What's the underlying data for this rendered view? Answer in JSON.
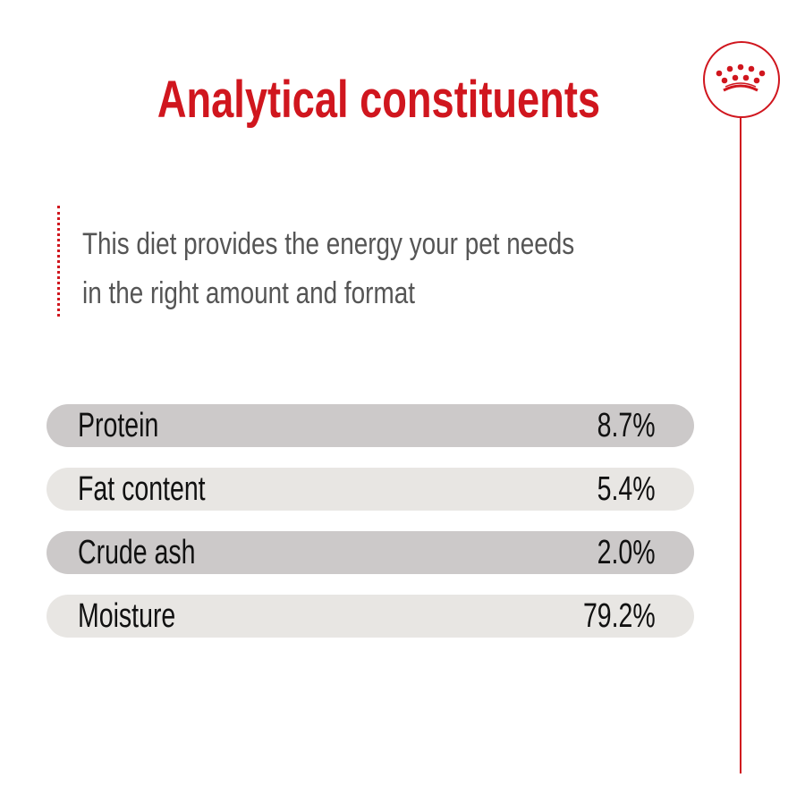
{
  "title": "Analytical constituents",
  "description": {
    "line1": "This diet provides the energy your pet needs",
    "line2": "in the right amount and format"
  },
  "constituents": [
    {
      "label": "Protein",
      "value": "8.7%"
    },
    {
      "label": "Fat content",
      "value": "5.4%"
    },
    {
      "label": "Crude ash",
      "value": "2.0%"
    },
    {
      "label": "Moisture",
      "value": "79.2%"
    }
  ],
  "logo": {
    "icon": "crown-icon"
  },
  "colors": {
    "accent": "#d0161e",
    "row_dark": "#ccc9c9",
    "row_light": "#e8e6e3"
  }
}
